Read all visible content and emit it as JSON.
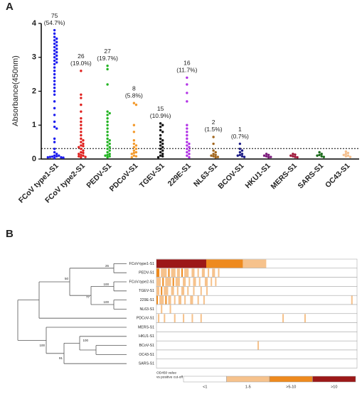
{
  "chart_data": [
    {
      "type": "strip",
      "panel": "A",
      "ylabel": "Absorbance(450nm)",
      "categories": [
        "FCoV type1-S1",
        "FCoV type2-S1",
        "PEDV-S1",
        "PDCoV-S1",
        "TGEV-S1",
        "229E-S1",
        "NL63-S1",
        "BCOV-S1",
        "HKU1-S1",
        "MERS-S1",
        "SARS-S1",
        "OC43-S1"
      ],
      "colors": [
        "#1c1cf0",
        "#e0201e",
        "#22b422",
        "#f39a2c",
        "#111111",
        "#b232e6",
        "#a2661e",
        "#1c1c86",
        "#7a1a7a",
        "#a01a3c",
        "#1a6a1a",
        "#f5c08e"
      ],
      "values": [
        [
          3.8,
          3.7,
          3.6,
          3.55,
          3.5,
          3.45,
          3.4,
          3.35,
          3.3,
          3.25,
          3.2,
          3.15,
          3.1,
          3.05,
          3.0,
          2.95,
          2.9,
          2.85,
          2.8,
          2.7,
          2.6,
          2.5,
          2.4,
          2.3,
          2.2,
          2.1,
          2.0,
          1.9,
          1.7,
          1.5,
          1.3,
          1.1,
          0.95,
          0.9,
          0.6,
          0.5,
          0.3,
          0.2,
          0.15,
          0.1,
          0.1,
          0.08,
          0.07,
          0.06,
          0.05,
          0.05,
          0.04,
          0.03
        ],
        [
          2.6,
          1.9,
          1.8,
          1.6,
          1.4,
          1.2,
          1.1,
          1.0,
          0.9,
          0.8,
          0.7,
          0.6,
          0.55,
          0.5,
          0.45,
          0.4,
          0.38,
          0.35,
          0.3,
          0.25,
          0.2,
          0.18,
          0.15,
          0.12,
          0.1,
          0.08,
          0.06,
          0.05
        ],
        [
          2.75,
          2.65,
          2.2,
          1.4,
          1.35,
          1.3,
          1.2,
          1.1,
          1.0,
          0.9,
          0.8,
          0.7,
          0.6,
          0.55,
          0.5,
          0.45,
          0.4,
          0.35,
          0.3,
          0.25,
          0.2,
          0.15,
          0.12,
          0.1,
          0.08,
          0.05
        ],
        [
          1.65,
          1.6,
          1.0,
          0.8,
          0.55,
          0.45,
          0.4,
          0.35,
          0.3,
          0.25,
          0.2,
          0.18,
          0.15,
          0.1,
          0.08,
          0.05
        ],
        [
          1.05,
          1.0,
          0.95,
          0.85,
          0.8,
          0.7,
          0.6,
          0.55,
          0.5,
          0.45,
          0.4,
          0.35,
          0.3,
          0.25,
          0.2,
          0.15,
          0.1,
          0.08,
          0.05
        ],
        [
          2.4,
          2.2,
          1.95,
          1.7,
          1.0,
          0.9,
          0.8,
          0.7,
          0.6,
          0.5,
          0.45,
          0.4,
          0.35,
          0.3,
          0.25,
          0.2,
          0.15,
          0.1,
          0.05
        ],
        [
          0.65,
          0.45,
          0.25,
          0.2,
          0.15,
          0.12,
          0.1,
          0.08,
          0.06,
          0.05
        ],
        [
          0.45,
          0.3,
          0.25,
          0.2,
          0.15,
          0.12,
          0.1,
          0.08,
          0.06
        ],
        [
          0.15,
          0.12,
          0.1,
          0.08,
          0.06,
          0.05
        ],
        [
          0.15,
          0.13,
          0.1,
          0.08,
          0.06,
          0.05
        ],
        [
          0.2,
          0.15,
          0.12,
          0.1,
          0.08,
          0.06
        ],
        [
          0.22,
          0.18,
          0.15,
          0.12,
          0.1,
          0.08,
          0.06
        ]
      ],
      "count_labels": [
        "75",
        "26",
        "27",
        "8",
        "15",
        "16",
        "2",
        "1",
        null,
        null,
        null,
        null
      ],
      "pct_labels": [
        "(54.7%)",
        "(19.0%)",
        "(19.7%)",
        "(5.8%)",
        "(10.9%)",
        "(11.7%)",
        "(1.5%)",
        "(0.7%)",
        null,
        null,
        null,
        null
      ],
      "cutoff": 0.31,
      "ylim": [
        0,
        4
      ],
      "yticks": [
        0,
        1,
        2,
        3,
        4
      ]
    },
    {
      "type": "heatmap",
      "panel": "B",
      "rows": [
        "FCoV-type1-S1",
        "PEDV-S1",
        "FCoV-type2-S1",
        "TGEV-S1",
        "229E-S1",
        "NL63-S1",
        "PDCoV-S1",
        "MERS-S1",
        "HKU1-S1",
        "BCoV-S1",
        "OC43-S1",
        "SARS-S1"
      ],
      "node_labels": [
        "26",
        "50",
        "100",
        "77",
        "100",
        "100",
        "100",
        "91"
      ],
      "samples": 137,
      "runs": [
        [
          [
            0,
            34,
            3
          ],
          [
            34,
            25,
            2
          ],
          [
            59,
            16,
            1
          ]
        ],
        [
          [
            0,
            2,
            2
          ],
          [
            3,
            4,
            1
          ],
          [
            8,
            1,
            2
          ],
          [
            10,
            3,
            1
          ],
          [
            14,
            2,
            1
          ],
          [
            17,
            1,
            2
          ],
          [
            19,
            3,
            1
          ],
          [
            24,
            2,
            1
          ],
          [
            28,
            1,
            1
          ],
          [
            31,
            2,
            1
          ],
          [
            35,
            1,
            1
          ],
          [
            38,
            2,
            1
          ],
          [
            42,
            1,
            1
          ]
        ],
        [
          [
            0,
            3,
            1
          ],
          [
            4,
            1,
            2
          ],
          [
            6,
            4,
            1
          ],
          [
            11,
            1,
            2
          ],
          [
            13,
            3,
            1
          ],
          [
            18,
            2,
            1
          ],
          [
            22,
            1,
            1
          ],
          [
            25,
            2,
            1
          ],
          [
            29,
            1,
            1
          ],
          [
            33,
            2,
            1
          ],
          [
            37,
            1,
            1
          ],
          [
            40,
            1,
            1
          ]
        ],
        [
          [
            0,
            2,
            1
          ],
          [
            3,
            1,
            2
          ],
          [
            5,
            3,
            1
          ],
          [
            10,
            2,
            1
          ],
          [
            14,
            1,
            1
          ],
          [
            17,
            2,
            1
          ],
          [
            21,
            1,
            1
          ],
          [
            25,
            1,
            1
          ],
          [
            30,
            1,
            1
          ],
          [
            34,
            1,
            1
          ]
        ],
        [
          [
            0,
            1,
            2
          ],
          [
            2,
            3,
            1
          ],
          [
            6,
            1,
            2
          ],
          [
            8,
            2,
            1
          ],
          [
            12,
            1,
            1
          ],
          [
            15,
            2,
            1
          ],
          [
            19,
            1,
            1
          ],
          [
            23,
            2,
            1
          ],
          [
            28,
            1,
            1
          ],
          [
            32,
            1,
            1
          ],
          [
            133,
            1,
            1
          ]
        ],
        [
          [
            3,
            1,
            1
          ],
          [
            9,
            1,
            1
          ]
        ],
        [
          [
            1,
            1,
            1
          ],
          [
            5,
            1,
            1
          ],
          [
            12,
            1,
            1
          ],
          [
            18,
            1,
            1
          ],
          [
            24,
            1,
            1
          ],
          [
            30,
            1,
            1
          ],
          [
            86,
            1,
            1
          ],
          [
            101,
            1,
            1
          ]
        ],
        [],
        [],
        [
          [
            69,
            1,
            1
          ]
        ],
        [],
        []
      ],
      "legend_title": [
        "OD450 value",
        "vs positive cut-off"
      ],
      "levels": [
        "<1",
        "1-5",
        ">5-10",
        ">10"
      ],
      "level_colors": [
        "#ffffff",
        "#f6c28c",
        "#ee8a1e",
        "#9c1818"
      ]
    }
  ]
}
